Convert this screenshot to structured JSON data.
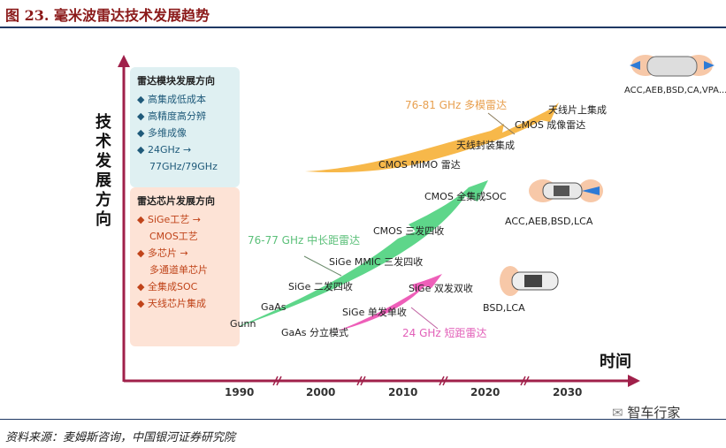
{
  "title": "图 23. 毫米波雷达技术发展趋势",
  "y_axis_label": "技术发展方向",
  "x_axis_label": "时间",
  "years": [
    "1990",
    "2000",
    "2010",
    "2020",
    "2030"
  ],
  "module_box": {
    "heading": "雷达模块发展方向",
    "items": [
      "◆ 高集成低成本",
      "◆ 高精度高分辨",
      "◆ 多维成像",
      "◆ 24GHz →",
      "77GHz/79GHz"
    ]
  },
  "chip_box": {
    "heading": "雷达芯片发展方向",
    "items": [
      "◆ SiGe工艺 →",
      "CMOS工艺",
      "◆ 多芯片 →",
      "多通道单芯片",
      "◆ 全集成SOC",
      "◆ 天线芯片集成"
    ]
  },
  "tracks": {
    "orange": {
      "name": "76-81 GHz 多模雷达",
      "steps": [
        "CMOS MIMO 雷达",
        "天线封装集成",
        "CMOS 成像雷达",
        "天线片上集成"
      ],
      "apps": "ACC,AEB,BSD,CA,VPA...",
      "color": "#f5b041"
    },
    "green": {
      "name": "76-77 GHz 中长距雷达",
      "steps": [
        "Gunn",
        "GaAs",
        "SiGe 二发四收",
        "SiGe MMIC 三发四收",
        "CMOS 三发四收",
        "CMOS 全集成SOC"
      ],
      "apps": "ACC,AEB,BSD,LCA",
      "color": "#4fcf80"
    },
    "pink": {
      "name": "24 GHz 短距雷达",
      "steps": [
        "GaAs 分立模式",
        "SiGe 单发单收",
        "SiGe 双发双收"
      ],
      "apps": "BSD,LCA",
      "color": "#e94fb0"
    }
  },
  "source": "资料来源：麦姆斯咨询，中国银河证券研究院",
  "watermark": "智车行家"
}
